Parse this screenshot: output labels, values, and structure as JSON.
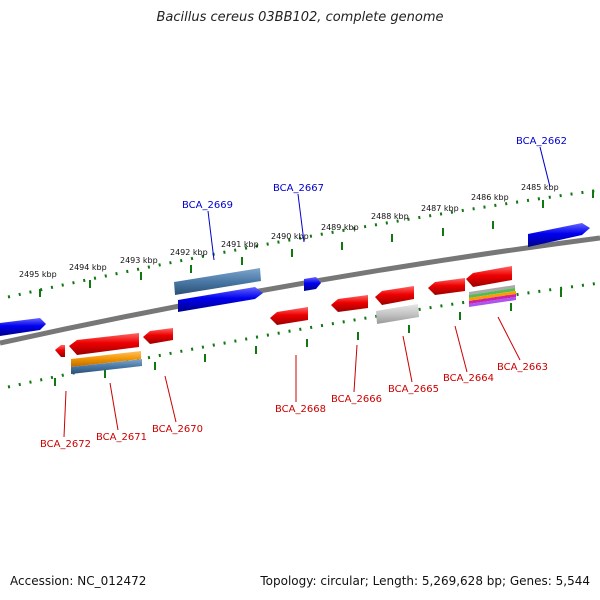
{
  "title": "Bacillus cereus 03BB102, complete genome",
  "footer": {
    "accession": "Accession: NC_012472",
    "summary": "Topology: circular; Length: 5,269,628 bp; Genes: 5,544"
  },
  "scale_labels": [
    "2495 kbp",
    "2494 kbp",
    "2493 kbp",
    "2492 kbp",
    "2491 kbp",
    "2490 kbp",
    "2489 kbp",
    "2488 kbp",
    "2487 kbp",
    "2486 kbp",
    "2485 kbp"
  ],
  "genes_forward": [
    "BCA_2669",
    "BCA_2667",
    "BCA_2662"
  ],
  "genes_reverse": [
    "BCA_2672",
    "BCA_2671",
    "BCA_2670",
    "BCA_2668",
    "BCA_2666",
    "BCA_2665",
    "BCA_2664",
    "BCA_2663"
  ],
  "colors": {
    "forward_gene": "#0000ee",
    "reverse_gene": "#ee0000",
    "backbone": "#777777",
    "ticks": "#117711",
    "forward_label": "#0000cc",
    "reverse_label": "#cc0000"
  }
}
